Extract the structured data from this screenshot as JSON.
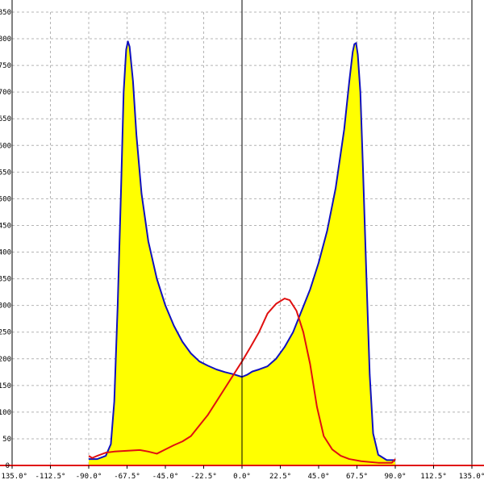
{
  "chart_data": {
    "type": "area",
    "title": "",
    "xlabel": "",
    "ylabel": "",
    "xlim": [
      -135,
      135
    ],
    "ylim": [
      0,
      850
    ],
    "x_ticks": [
      -135,
      -112.5,
      -90,
      -67.5,
      -45,
      -22.5,
      0,
      22.5,
      45,
      67.5,
      90,
      112.5,
      135
    ],
    "x_tick_labels": [
      "-135.0°",
      "-112.5°",
      "-90.0°",
      "-67.5°",
      "-45.0°",
      "-22.5°",
      "0.0°",
      "22.5°",
      "45.0°",
      "67.5°",
      "90.0°",
      "112.5°",
      "135.0°"
    ],
    "y_ticks": [
      0,
      50,
      100,
      150,
      200,
      250,
      300,
      350,
      400,
      450,
      500,
      550,
      600,
      650,
      700,
      750,
      800,
      850
    ],
    "y_tick_labels": [
      "0",
      "50",
      "100",
      "150",
      "200",
      "250",
      "300",
      "350",
      "400",
      "450",
      "500",
      "550",
      "600",
      "650",
      "700",
      "750",
      "800",
      "850"
    ],
    "grid": true,
    "legend": "none",
    "series": [
      {
        "color": "#1010c0",
        "fill": "#ffff00",
        "points": [
          [
            -90,
            12
          ],
          [
            -85,
            12
          ],
          [
            -80,
            18
          ],
          [
            -77,
            40
          ],
          [
            -75,
            120
          ],
          [
            -73,
            300
          ],
          [
            -71,
            520
          ],
          [
            -69.5,
            700
          ],
          [
            -68,
            780
          ],
          [
            -67,
            795
          ],
          [
            -66,
            785
          ],
          [
            -64,
            720
          ],
          [
            -62,
            620
          ],
          [
            -59,
            510
          ],
          [
            -55,
            420
          ],
          [
            -50,
            350
          ],
          [
            -45,
            300
          ],
          [
            -40,
            262
          ],
          [
            -35,
            232
          ],
          [
            -30,
            210
          ],
          [
            -25,
            195
          ],
          [
            -20,
            187
          ],
          [
            -15,
            180
          ],
          [
            -10,
            175
          ],
          [
            -5,
            171
          ],
          [
            0,
            166
          ],
          [
            3,
            170
          ],
          [
            6,
            176
          ],
          [
            10,
            180
          ],
          [
            15,
            186
          ],
          [
            20,
            200
          ],
          [
            25,
            222
          ],
          [
            30,
            250
          ],
          [
            35,
            290
          ],
          [
            40,
            330
          ],
          [
            45,
            380
          ],
          [
            50,
            440
          ],
          [
            55,
            520
          ],
          [
            60,
            630
          ],
          [
            63,
            720
          ],
          [
            65,
            775
          ],
          [
            66,
            790
          ],
          [
            67,
            792
          ],
          [
            68,
            770
          ],
          [
            69.5,
            700
          ],
          [
            71,
            560
          ],
          [
            73,
            360
          ],
          [
            75,
            170
          ],
          [
            77,
            60
          ],
          [
            80,
            20
          ],
          [
            85,
            10
          ],
          [
            89,
            10
          ],
          [
            90,
            8
          ]
        ]
      },
      {
        "color": "#e01010",
        "points": [
          [
            -90,
            18
          ],
          [
            -88,
            14
          ],
          [
            -85,
            18
          ],
          [
            -80,
            24
          ],
          [
            -75,
            26
          ],
          [
            -70,
            27
          ],
          [
            -65,
            28
          ],
          [
            -60,
            29
          ],
          [
            -55,
            26
          ],
          [
            -50,
            22
          ],
          [
            -45,
            30
          ],
          [
            -40,
            38
          ],
          [
            -35,
            45
          ],
          [
            -30,
            55
          ],
          [
            -25,
            75
          ],
          [
            -20,
            95
          ],
          [
            -15,
            120
          ],
          [
            -10,
            145
          ],
          [
            -5,
            170
          ],
          [
            0,
            195
          ],
          [
            5,
            222
          ],
          [
            10,
            250
          ],
          [
            15,
            285
          ],
          [
            20,
            303
          ],
          [
            25,
            313
          ],
          [
            28,
            310
          ],
          [
            32,
            290
          ],
          [
            36,
            250
          ],
          [
            40,
            190
          ],
          [
            44,
            110
          ],
          [
            48,
            55
          ],
          [
            53,
            30
          ],
          [
            58,
            18
          ],
          [
            63,
            12
          ],
          [
            70,
            8
          ],
          [
            80,
            5
          ],
          [
            88,
            5
          ],
          [
            90,
            12
          ]
        ]
      }
    ]
  }
}
